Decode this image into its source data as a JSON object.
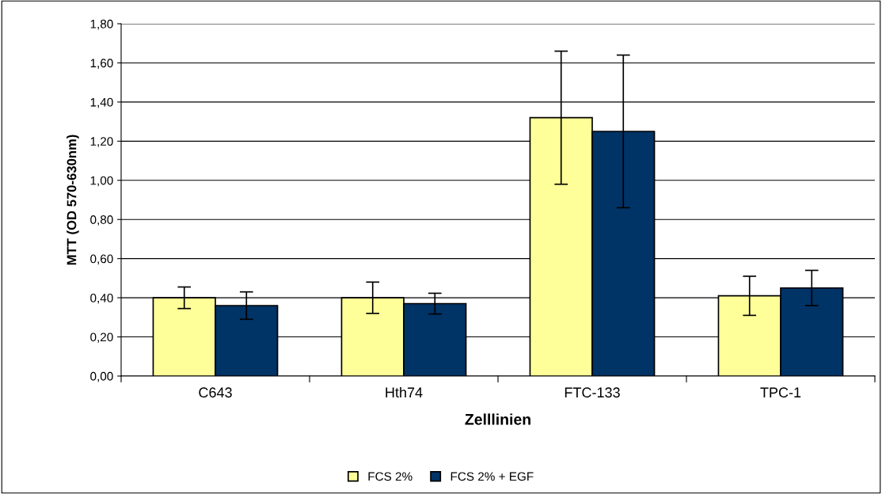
{
  "chart_data": {
    "type": "bar",
    "xlabel": "Zelllinien",
    "ylabel": "MTT (OD 570-630nm)",
    "categories": [
      "C643",
      "Hth74",
      "FTC-133",
      "TPC-1"
    ],
    "series": [
      {
        "name": "FCS 2%",
        "color": "#ffff99",
        "values": [
          0.4,
          0.4,
          1.32,
          0.41
        ],
        "errors": [
          0.055,
          0.08,
          0.34,
          0.1
        ]
      },
      {
        "name": "FCS 2% + EGF",
        "color": "#003366",
        "values": [
          0.36,
          0.37,
          1.25,
          0.45
        ],
        "errors": [
          0.07,
          0.053,
          0.39,
          0.09
        ]
      }
    ],
    "ylim": [
      0,
      1.8
    ],
    "yticks": [
      {
        "value": 0,
        "label": "0,00"
      },
      {
        "value": 0.2,
        "label": "0,20"
      },
      {
        "value": 0.4,
        "label": "0,40"
      },
      {
        "value": 0.6,
        "label": "0,60"
      },
      {
        "value": 0.8,
        "label": "0,80"
      },
      {
        "value": 1.0,
        "label": "1,00"
      },
      {
        "value": 1.2,
        "label": "1,20"
      },
      {
        "value": 1.4,
        "label": "1,40"
      },
      {
        "value": 1.6,
        "label": "1,60"
      },
      {
        "value": 1.8,
        "label": "1,80"
      }
    ],
    "grid": "y",
    "legend": "bottom"
  }
}
